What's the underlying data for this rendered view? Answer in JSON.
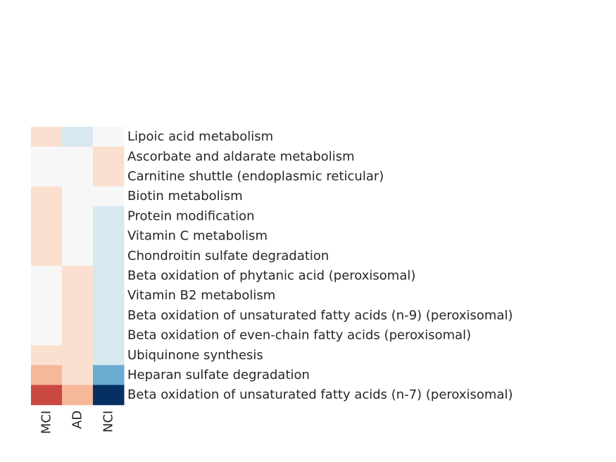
{
  "chart_data": {
    "type": "heatmap",
    "columns": [
      "MCI",
      "AD",
      "NCI"
    ],
    "rows": [
      "Lipoic acid metabolism",
      "Ascorbate and aldarate metabolism",
      "Carnitine shuttle (endoplasmic reticular)",
      "Biotin metabolism",
      "Protein modification",
      "Vitamin C metabolism",
      "Chondroitin sulfate degradation",
      "Beta oxidation of phytanic acid (peroxisomal)",
      "Vitamin B2 metabolism",
      "Beta oxidation of unsaturated fatty acids (n-9) (peroxisomal)",
      "Beta oxidation of even-chain fatty acids (peroxisomal)",
      "Ubiquinone synthesis",
      "Heparan sulfate degradation",
      "Beta oxidation of unsaturated fatty acids (n-7) (peroxisomal)"
    ],
    "values": [
      [
        1,
        -1,
        0
      ],
      [
        0,
        0,
        1
      ],
      [
        0,
        0,
        1
      ],
      [
        1,
        0,
        0
      ],
      [
        1,
        0,
        -1
      ],
      [
        1,
        0,
        -1
      ],
      [
        1,
        0,
        -1
      ],
      [
        0,
        1,
        -1
      ],
      [
        0,
        1,
        -1
      ],
      [
        0,
        1,
        -1
      ],
      [
        0,
        1,
        -1
      ],
      [
        1,
        1,
        -1
      ],
      [
        2,
        1,
        -3
      ],
      [
        4,
        2,
        -6
      ]
    ],
    "colorscale": {
      "type": "diverging",
      "low": "#053061",
      "mid": "#f7f7f7",
      "high": "#67001f",
      "vmin": -6,
      "vmax": 6
    },
    "legend": "none"
  }
}
